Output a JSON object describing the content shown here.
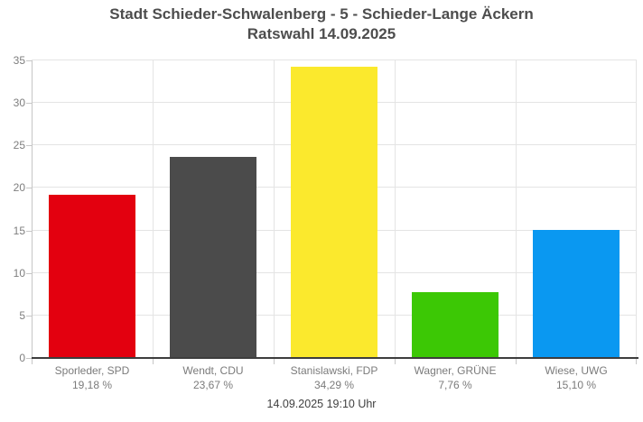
{
  "title": {
    "line1": "Stadt Schieder-Schwalenberg - 5 - Schieder-Lange Äckern",
    "line2": "Ratswahl 14.09.2025"
  },
  "footer": {
    "timestamp": "14.09.2025 19:10 Uhr"
  },
  "chart_data": {
    "type": "bar",
    "title": "Stadt Schieder-Schwalenberg - 5 - Schieder-Lange Äckern",
    "subtitle": "Ratswahl 14.09.2025",
    "categories": [
      "Sporleder, SPD",
      "Wendt, CDU",
      "Stanislawski, FDP",
      "Wagner, GRÜNE",
      "Wiese, UWG"
    ],
    "values": [
      19.18,
      23.67,
      34.29,
      7.76,
      15.1
    ],
    "value_labels": [
      "19,18 %",
      "23,67 %",
      "34,29 %",
      "7,76 %",
      "15,10 %"
    ],
    "bar_colors": [
      "#e3000f",
      "#4b4b4b",
      "#fbe92d",
      "#3cc805",
      "#0a98f1"
    ],
    "xlabel": "",
    "ylabel": "",
    "ylim": [
      0,
      35
    ],
    "yticks": [
      0,
      5,
      10,
      15,
      20,
      25,
      30,
      35
    ],
    "grid": true,
    "legend_position": "none"
  }
}
